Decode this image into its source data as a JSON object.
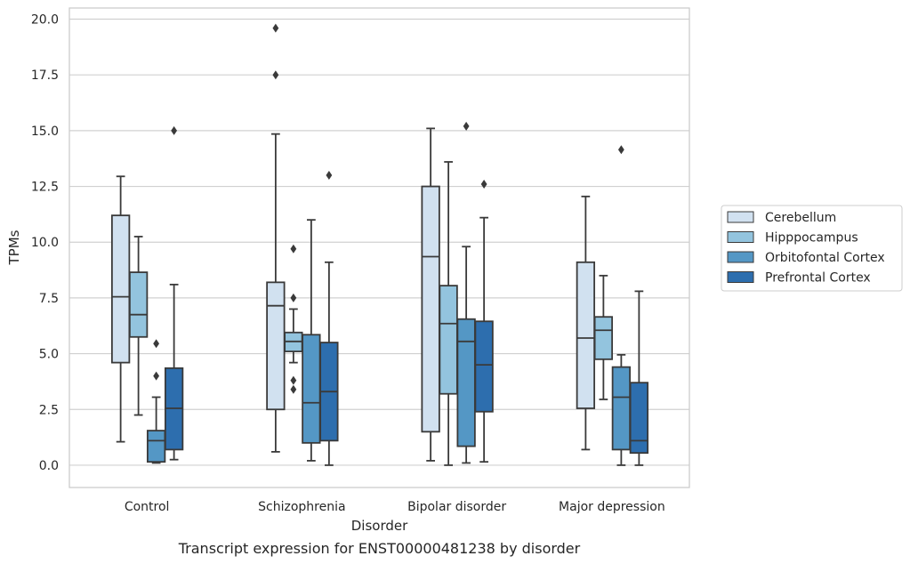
{
  "chart_data": {
    "type": "box",
    "xlabel": "Disorder",
    "ylabel": "TPMs",
    "caption": "Transcript expression for ENST00000481238 by disorder",
    "ylim": [
      -1.0,
      20.5
    ],
    "yticks": [
      0.0,
      2.5,
      5.0,
      7.5,
      10.0,
      12.5,
      15.0,
      17.5,
      20.0
    ],
    "ytick_labels": [
      "0.0",
      "2.5",
      "5.0",
      "7.5",
      "10.0",
      "12.5",
      "15.0",
      "17.5",
      "20.0"
    ],
    "grid": "horizontal",
    "legend_position": "right-outside",
    "categories": [
      "Control",
      "Schizophrenia",
      "Bipolar disorder",
      "Major depression"
    ],
    "series": [
      {
        "name": "Cerebellum",
        "color": "#d1e1f0",
        "boxes": [
          {
            "whislo": 1.05,
            "q1": 4.6,
            "med": 7.55,
            "q3": 11.2,
            "whishi": 12.95,
            "fliers": []
          },
          {
            "whislo": 0.6,
            "q1": 2.5,
            "med": 7.15,
            "q3": 8.2,
            "whishi": 14.85,
            "fliers": [
              17.5,
              19.6
            ]
          },
          {
            "whislo": 0.2,
            "q1": 1.5,
            "med": 9.35,
            "q3": 12.5,
            "whishi": 15.1,
            "fliers": []
          },
          {
            "whislo": 0.7,
            "q1": 2.55,
            "med": 5.7,
            "q3": 9.1,
            "whishi": 12.05,
            "fliers": []
          }
        ]
      },
      {
        "name": "Hipppocampus",
        "color": "#93c4de",
        "boxes": [
          {
            "whislo": 2.25,
            "q1": 5.75,
            "med": 6.75,
            "q3": 8.65,
            "whishi": 10.25,
            "fliers": []
          },
          {
            "whislo": 4.6,
            "q1": 5.1,
            "med": 5.55,
            "q3": 5.95,
            "whishi": 7.0,
            "fliers": [
              3.4,
              3.8,
              7.5,
              9.7
            ]
          },
          {
            "whislo": 0.0,
            "q1": 3.2,
            "med": 6.35,
            "q3": 8.05,
            "whishi": 13.6,
            "fliers": []
          },
          {
            "whislo": 2.95,
            "q1": 4.75,
            "med": 6.05,
            "q3": 6.65,
            "whishi": 8.5,
            "fliers": []
          }
        ]
      },
      {
        "name": "Orbitofontal Cortex",
        "color": "#5497c5",
        "boxes": [
          {
            "whislo": 0.1,
            "q1": 0.15,
            "med": 1.1,
            "q3": 1.55,
            "whishi": 3.05,
            "fliers": [
              4.0,
              5.45
            ]
          },
          {
            "whislo": 0.2,
            "q1": 1.0,
            "med": 2.8,
            "q3": 5.85,
            "whishi": 11.0,
            "fliers": []
          },
          {
            "whislo": 0.1,
            "q1": 0.85,
            "med": 5.55,
            "q3": 6.55,
            "whishi": 9.8,
            "fliers": [
              15.2
            ]
          },
          {
            "whislo": 0.0,
            "q1": 0.7,
            "med": 3.05,
            "q3": 4.4,
            "whishi": 4.95,
            "fliers": [
              14.15
            ]
          }
        ]
      },
      {
        "name": "Prefrontal Cortex",
        "color": "#2d6eae",
        "boxes": [
          {
            "whislo": 0.25,
            "q1": 0.7,
            "med": 2.55,
            "q3": 4.35,
            "whishi": 8.1,
            "fliers": [
              15.0
            ]
          },
          {
            "whislo": 0.0,
            "q1": 1.1,
            "med": 3.3,
            "q3": 5.5,
            "whishi": 9.1,
            "fliers": [
              13.0
            ]
          },
          {
            "whislo": 0.15,
            "q1": 2.4,
            "med": 4.5,
            "q3": 6.45,
            "whishi": 11.1,
            "fliers": [
              12.6
            ]
          },
          {
            "whislo": 0.0,
            "q1": 0.55,
            "med": 1.1,
            "q3": 3.7,
            "whishi": 7.8,
            "fliers": []
          }
        ]
      }
    ]
  }
}
